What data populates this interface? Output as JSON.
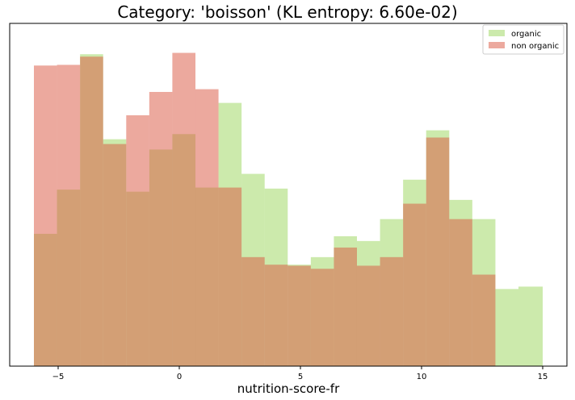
{
  "chart_data": {
    "type": "histogram",
    "title": "Category: 'boisson' (KL entropy: 6.60e-02)",
    "xlabel": "nutrition-score-fr",
    "ylabel": "",
    "xlim": [
      -7,
      16
    ],
    "ylim": [
      0,
      1.0
    ],
    "xticks": [
      -5,
      0,
      5,
      10,
      15
    ],
    "show_yticks": false,
    "grid": false,
    "legend": {
      "position": "top-right",
      "entries": [
        "organic",
        "non organic"
      ]
    },
    "bin_edges": [
      -6,
      -5.048,
      -4.095,
      -3.143,
      -2.19,
      -1.238,
      -0.286,
      0.667,
      1.619,
      2.571,
      3.524,
      4.476,
      5.429,
      6.381,
      7.333,
      8.286,
      9.238,
      10.19,
      11.143,
      12.095,
      13.048,
      14.0,
      15.0
    ],
    "series": [
      {
        "name": "organic",
        "color": "#9ad55a",
        "alpha": 0.5,
        "values": [
          0.386,
          0.515,
          0.91,
          0.662,
          0.509,
          0.632,
          0.677,
          0.521,
          0.768,
          0.561,
          0.518,
          0.296,
          0.318,
          0.379,
          0.365,
          0.429,
          0.544,
          0.688,
          0.485,
          0.429,
          0.225,
          0.232
        ],
        "note_last_bins": "organic extends to 15"
      },
      {
        "name": "non organic",
        "color": "#d9543e",
        "alpha": 0.5,
        "values": [
          0.877,
          0.879,
          0.903,
          0.648,
          0.732,
          0.8,
          0.914,
          0.808,
          0.523,
          0.0,
          0.0,
          0.0,
          0.0,
          0.0,
          0.0,
          0.0,
          0.0,
          0.0,
          0.0,
          0.0
        ],
        "overlap_values": [
          0.386,
          0.515,
          0.903,
          0.648,
          0.509,
          0.632,
          0.677,
          0.521,
          0.521,
          0.318,
          0.296,
          0.293,
          0.284,
          0.346,
          0.293,
          0.318,
          0.474,
          0.667,
          0.429,
          0.267
        ]
      }
    ]
  }
}
